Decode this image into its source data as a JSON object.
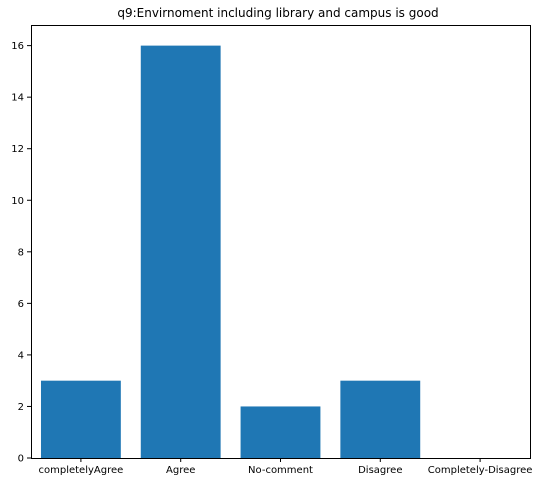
{
  "chart_data": {
    "type": "bar",
    "title": "q9:Envirnoment including library and campus is good",
    "xlabel": "",
    "ylabel": "",
    "categories": [
      "completelyAgree",
      "Agree",
      "No-comment",
      "Disagree",
      "Completely-Disagree"
    ],
    "values": [
      3,
      16,
      2,
      3,
      0
    ],
    "ylim": [
      0,
      16.8
    ],
    "yticks": [
      0,
      2,
      4,
      6,
      8,
      10,
      12,
      14,
      16
    ],
    "grid": false,
    "legend": "none",
    "bar_color": "#1f77b4"
  }
}
